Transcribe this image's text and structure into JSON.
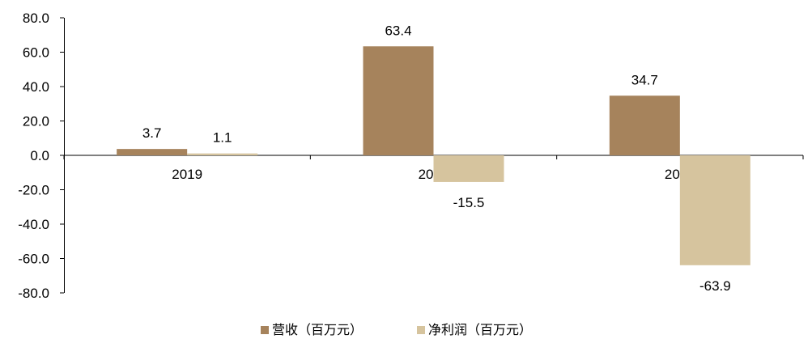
{
  "chart_data": {
    "type": "bar",
    "categories": [
      "2019",
      "2020",
      "2021"
    ],
    "series": [
      {
        "name": "营收（百万元）",
        "values": [
          3.7,
          63.4,
          34.7
        ],
        "color": "#A6835C"
      },
      {
        "name": "净利润（百万元）",
        "values": [
          1.1,
          -15.5,
          -63.9
        ],
        "color": "#D6C49E"
      }
    ],
    "data_labels": [
      [
        "3.7",
        "63.4",
        "34.7"
      ],
      [
        "1.1",
        "-15.5",
        "-63.9"
      ]
    ],
    "ylim": [
      -80,
      80
    ],
    "yticks": [
      80,
      60,
      40,
      20,
      0,
      -20,
      -40,
      -60,
      -80
    ],
    "ytick_labels": [
      "80.0",
      "60.0",
      "40.0",
      "20.0",
      "0.0",
      "-20.0",
      "-40.0",
      "-60.0",
      "-80.0"
    ],
    "grid": false,
    "legend_position": "bottom"
  }
}
